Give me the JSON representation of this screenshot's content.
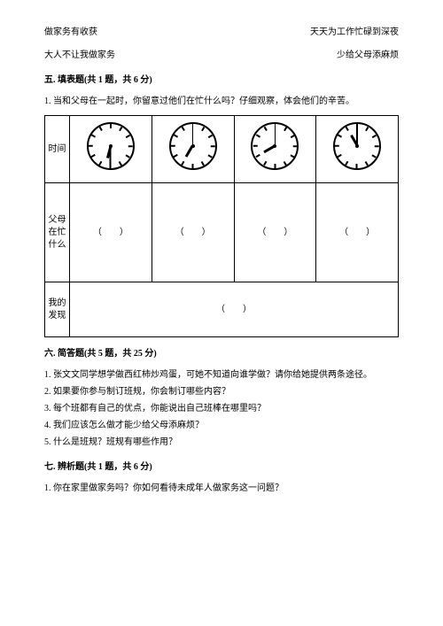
{
  "top_pairs": [
    {
      "left": "做家务有收获",
      "right": "天天为工作忙碌到深夜"
    },
    {
      "left": "大人不让我做家务",
      "right": "少给父母添麻烦"
    }
  ],
  "section5": {
    "title": "五. 填表题(共 1 题，共 6 分)",
    "q1": "1. 当和父母在一起时，你留意过他们在忙什么吗？仔细观察，体会他们的辛苦。",
    "row_labels": {
      "time": "时间",
      "busy": "父母在忙什么",
      "discovery": "我的发现"
    },
    "blank": "（　　）",
    "clocks": [
      {
        "hour_angle": 195,
        "minute_angle": 180
      },
      {
        "hour_angle": 210,
        "minute_angle": 0
      },
      {
        "hour_angle": 240,
        "minute_angle": 0
      },
      {
        "hour_angle": 330,
        "minute_angle": 0
      }
    ]
  },
  "section6": {
    "title": "六. 简答题(共 5 题，共 25 分)",
    "items": [
      "1. 张文文同学想学做西红柿炒鸡蛋，可她不知道向谁学做？请你给她提供两条途径。",
      "2. 如果要你参与制订班规，你会制订哪些内容？",
      "3. 每个班都有自己的优点，你能说出自己班棒在哪里吗？",
      "4. 我们应该怎么做才能少给父母添麻烦？",
      "5. 什么是班规？班规有哪些作用？"
    ]
  },
  "section7": {
    "title": "七. 辨析题(共 1 题，共 6 分)",
    "q1": "1. 你在家里做家务吗？你如何看待未成年人做家务这一问题？"
  }
}
